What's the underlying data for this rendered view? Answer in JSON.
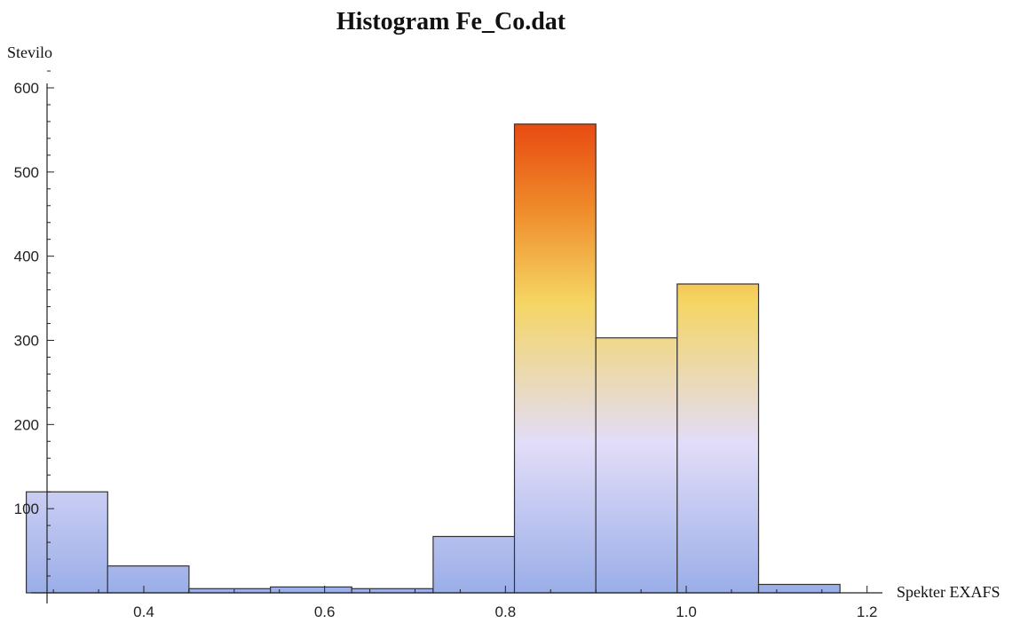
{
  "chart_data": {
    "type": "bar",
    "title": "Histogram Fe_Co.dat",
    "xlabel": "Spekter EXAFS",
    "ylabel": "Stevilo",
    "xlim": [
      0.28,
      1.2
    ],
    "ylim": [
      0,
      620
    ],
    "bin_width": 0.09,
    "x_ticks": [
      "0.4",
      "0.6",
      "0.8",
      "1.0",
      "1.2"
    ],
    "y_ticks": [
      "100",
      "200",
      "300",
      "400",
      "500",
      "600"
    ],
    "bins": [
      {
        "start": 0.27,
        "end": 0.36,
        "count": 120
      },
      {
        "start": 0.36,
        "end": 0.45,
        "count": 32
      },
      {
        "start": 0.45,
        "end": 0.54,
        "count": 5
      },
      {
        "start": 0.54,
        "end": 0.63,
        "count": 7
      },
      {
        "start": 0.63,
        "end": 0.72,
        "count": 5
      },
      {
        "start": 0.72,
        "end": 0.81,
        "count": 67
      },
      {
        "start": 0.81,
        "end": 0.9,
        "count": 557
      },
      {
        "start": 0.9,
        "end": 0.99,
        "count": 303
      },
      {
        "start": 0.99,
        "end": 1.08,
        "count": 367
      },
      {
        "start": 1.08,
        "end": 1.17,
        "count": 10
      }
    ]
  }
}
